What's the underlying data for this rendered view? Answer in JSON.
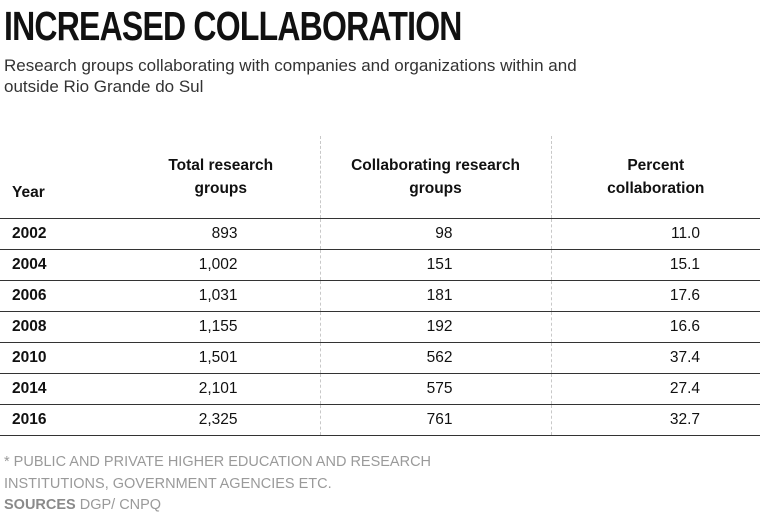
{
  "title": "INCREASED COLLABORATION",
  "subtitle": "Research groups collaborating with companies and organizations within and outside Rio Grande do Sul",
  "footnote": "* PUBLIC AND PRIVATE HIGHER EDUCATION AND RESEARCH INSTITUTIONS, GOVERNMENT AGENCIES ETC.",
  "sources": {
    "label": "SOURCES",
    "text": "DGP/ CNPQ"
  },
  "chart_data": {
    "type": "table",
    "title": "INCREASED COLLABORATION",
    "columns": [
      "Year",
      "Total research groups",
      "Collaborating research groups",
      "Percent collaboration"
    ],
    "rows": [
      [
        "2002",
        "893",
        "98",
        "11.0"
      ],
      [
        "2004",
        "1,002",
        "151",
        "15.1"
      ],
      [
        "2006",
        "1,031",
        "181",
        "17.6"
      ],
      [
        "2008",
        "1,155",
        "192",
        "16.6"
      ],
      [
        "2010",
        "1,501",
        "562",
        "37.4"
      ],
      [
        "2014",
        "2,101",
        "575",
        "27.4"
      ],
      [
        "2016",
        "2,325",
        "761",
        "32.7"
      ]
    ]
  }
}
